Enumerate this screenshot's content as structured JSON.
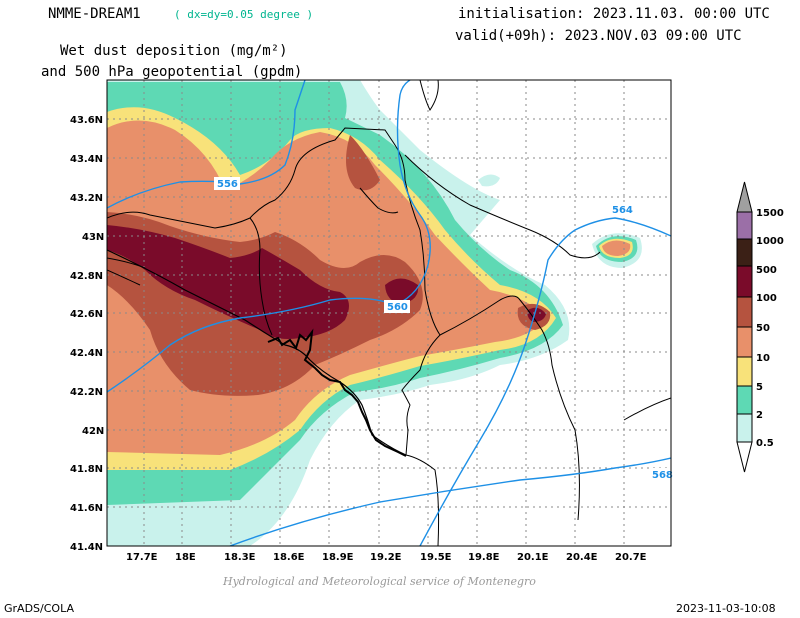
{
  "header": {
    "model_name": "NMME-DREAM1",
    "model_resolution": "( dx=dy=0.05 degree )",
    "field_line1": "Wet dust deposition (mg/m²)",
    "field_line2": "and 500 hPa geopotential (gpdm)",
    "initialisation": "initialisation: 2023.11.03. 00:00 UTC",
    "valid": "valid(+09h): 2023.NOV.03 09:00 UTC"
  },
  "map": {
    "lat_labels": [
      "43.6N",
      "43.4N",
      "43.2N",
      "43N",
      "42.8N",
      "42.6N",
      "42.4N",
      "42.2N",
      "42N",
      "41.8N",
      "41.6N",
      "41.4N"
    ],
    "lon_labels": [
      "17.7E",
      "18E",
      "18.3E",
      "18.6E",
      "18.9E",
      "19.2E",
      "19.5E",
      "19.8E",
      "20.1E",
      "20.4E",
      "20.7E"
    ],
    "geopotential_contours": [
      "556",
      "560",
      "564",
      "568"
    ],
    "colorbar": {
      "levels": [
        "0.5",
        "2",
        "5",
        "10",
        "50",
        "100",
        "500",
        "1000",
        "1500"
      ],
      "colors": [
        "#c9f2ec",
        "#5ed9b4",
        "#f8e27a",
        "#e8906a",
        "#b5533f",
        "#7a0b2a",
        "#3b2016",
        "#9b6fa7",
        "#a0a0a0"
      ]
    },
    "credit": "Hydrological and Meteorological service of Montenegro"
  },
  "footer": {
    "left": "GrADS/COLA",
    "right": "2023-11-03-10:08"
  }
}
